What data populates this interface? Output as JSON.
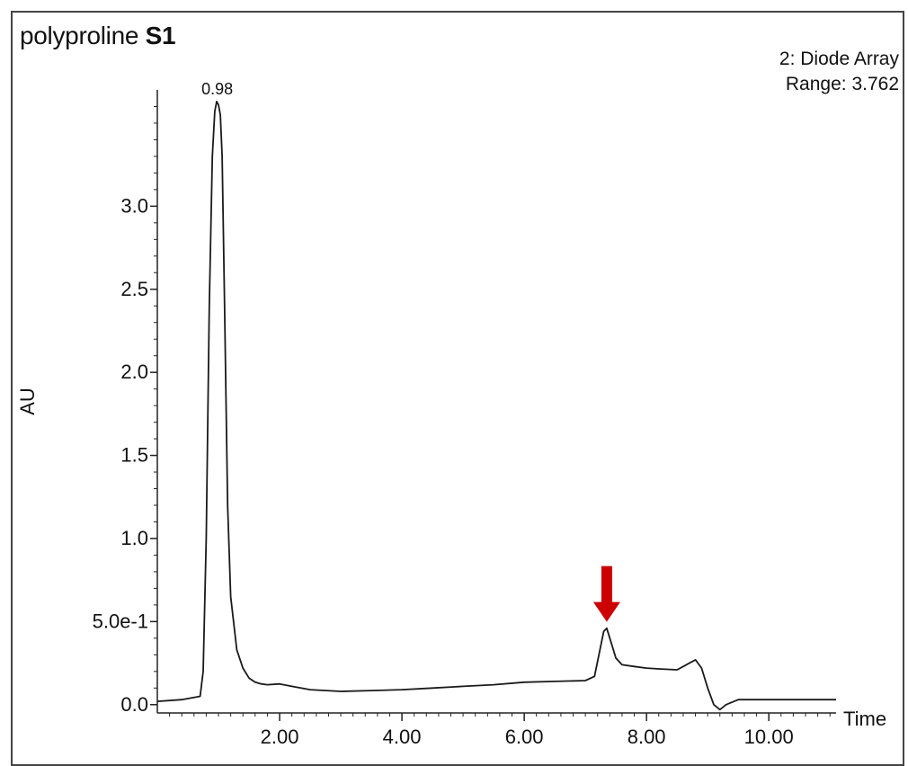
{
  "title": {
    "main": "polyproline",
    "suffix": "S1"
  },
  "info": {
    "line1": "2: Diode Array",
    "line2": "Range: 3.762"
  },
  "chart_data": {
    "type": "line",
    "xlabel": "Time",
    "ylabel": "AU",
    "xlim": [
      0.0,
      11.1
    ],
    "ylim": [
      -0.05,
      3.7
    ],
    "x_ticks": [
      2.0,
      4.0,
      6.0,
      8.0,
      10.0
    ],
    "x_tick_labels": [
      "2.00",
      "4.00",
      "6.00",
      "8.00",
      "10.00"
    ],
    "y_ticks": [
      0.0,
      0.5,
      1.0,
      1.5,
      2.0,
      2.5,
      3.0
    ],
    "y_tick_labels": [
      "0.0",
      "5.0e-1",
      "1.0",
      "1.5",
      "2.0",
      "2.5",
      "3.0"
    ],
    "grid": false,
    "annotations": [
      {
        "text": "0.98",
        "x": 0.98,
        "y": 3.63
      }
    ],
    "marker_arrow": {
      "x": 7.35,
      "y": 0.52,
      "color": "#cc0000"
    },
    "series": [
      {
        "x": [
          0.0,
          0.4,
          0.7,
          0.75,
          0.8,
          0.85,
          0.9,
          0.94,
          0.97,
          1.0,
          1.03,
          1.06,
          1.1,
          1.15,
          1.2,
          1.3,
          1.4,
          1.5,
          1.6,
          1.7,
          1.8,
          2.0,
          2.2,
          2.5,
          3.0,
          3.5,
          4.0,
          4.5,
          5.0,
          5.5,
          6.0,
          6.5,
          7.0,
          7.15,
          7.25,
          7.3,
          7.35,
          7.4,
          7.5,
          7.6,
          7.8,
          8.0,
          8.2,
          8.5,
          8.7,
          8.8,
          8.9,
          9.0,
          9.1,
          9.2,
          9.3,
          9.5,
          10.0,
          11.1
        ],
        "y": [
          0.02,
          0.03,
          0.05,
          0.2,
          1.0,
          2.4,
          3.3,
          3.57,
          3.63,
          3.61,
          3.55,
          3.3,
          2.4,
          1.2,
          0.65,
          0.33,
          0.22,
          0.16,
          0.135,
          0.125,
          0.12,
          0.125,
          0.11,
          0.09,
          0.08,
          0.085,
          0.09,
          0.1,
          0.11,
          0.12,
          0.135,
          0.14,
          0.145,
          0.17,
          0.35,
          0.44,
          0.46,
          0.4,
          0.28,
          0.24,
          0.23,
          0.22,
          0.215,
          0.21,
          0.25,
          0.27,
          0.22,
          0.1,
          0.0,
          -0.03,
          0.0,
          0.03,
          0.03,
          0.03
        ]
      }
    ]
  }
}
